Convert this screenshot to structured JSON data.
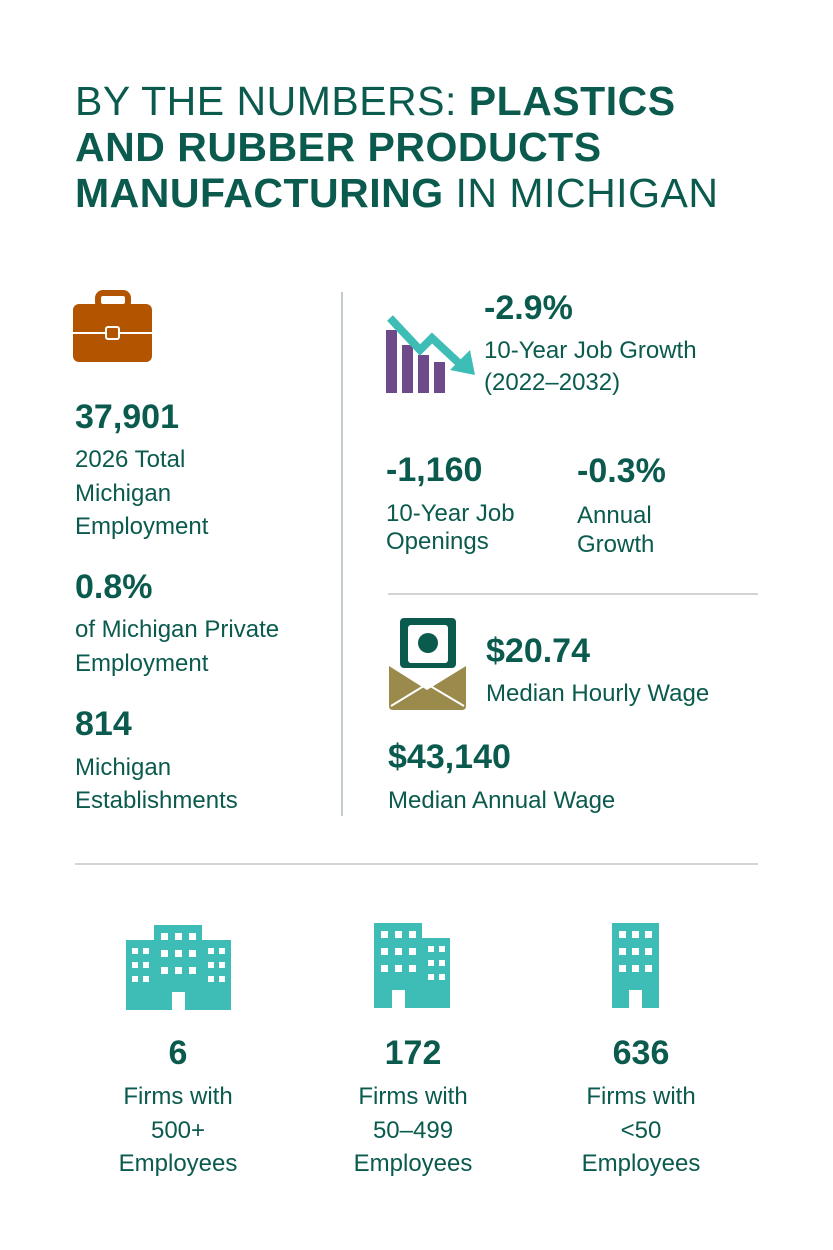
{
  "title": {
    "lines": [
      [
        "BY THE NUMBERS: ",
        "PLASTICS"
      ],
      [
        "AND RUBBER PRODUCTS"
      ],
      [
        "MANUFACTURING",
        " IN MICHIGAN"
      ]
    ]
  },
  "employment": [
    {
      "value": "37,901",
      "label": [
        "2026 Total",
        "Michigan",
        "Employment"
      ]
    },
    {
      "value": "0.8%",
      "label": [
        "of Michigan Private",
        "Employment"
      ]
    },
    {
      "value": "814",
      "label": [
        "Michigan",
        "Establishments"
      ]
    }
  ],
  "job_growth": {
    "value": "-2.9%",
    "label": [
      "10-Year Job Growth",
      "(2022–2032)"
    ]
  },
  "job_openings": {
    "value": "-1,160",
    "label": [
      "10-Year Job",
      "Openings"
    ]
  },
  "annual_growth": {
    "value": "-0.3%",
    "label": [
      "Annual",
      "Growth"
    ]
  },
  "hourly_wage": {
    "value": "$20.74",
    "label": [
      "Median Hourly Wage"
    ]
  },
  "annual_wage": {
    "value": "$43,140",
    "label": [
      "Median Annual Wage"
    ]
  },
  "firms": [
    {
      "value": "6",
      "label": [
        "Firms with",
        "500+",
        "Employees"
      ]
    },
    {
      "value": "172",
      "label": [
        "Firms with",
        "50–499",
        "Employees"
      ]
    },
    {
      "value": "636",
      "label": [
        "Firms with",
        "<50",
        "Employees"
      ]
    }
  ]
}
